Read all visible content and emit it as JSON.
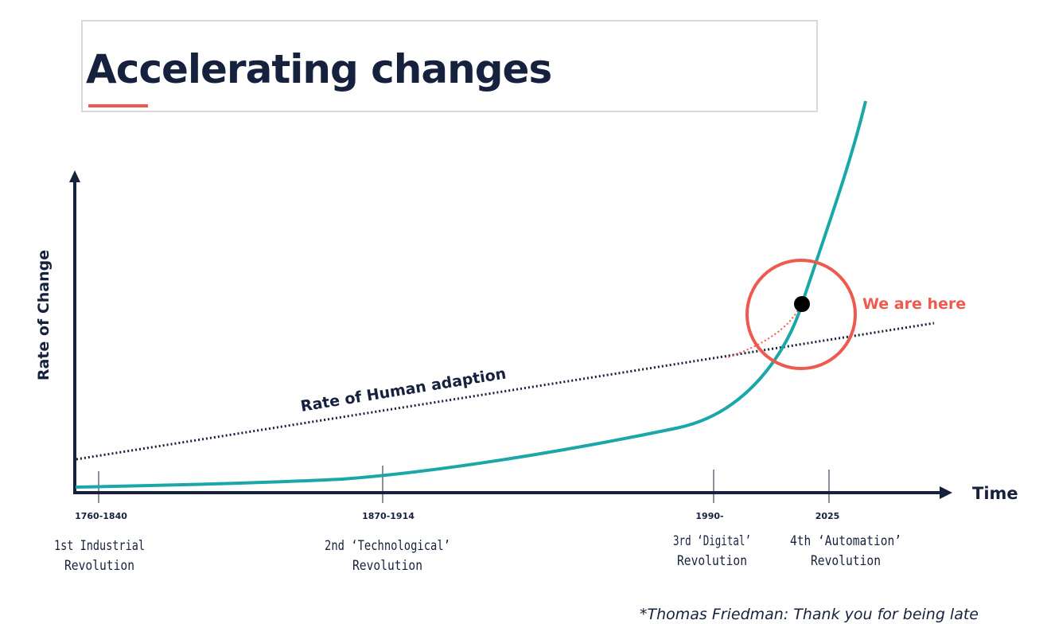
{
  "title": "Accelerating changes",
  "footnote": "*Thomas Friedman: Thank you for being late",
  "colors": {
    "navy": "#16213e",
    "teal": "#1ba7a8",
    "coral": "#ee5a4f",
    "title_border": "#d9d9d9",
    "black": "#000000"
  },
  "diagram": {
    "y_axis_label": "Rate of Change",
    "x_axis_label": "Time",
    "adaption_label": "Rate of Human adaption",
    "marker_label": "We are here",
    "eras": [
      {
        "period": "1760-1840",
        "line1": "1st Industrial",
        "line2": "Revolution"
      },
      {
        "period": "1870-1914",
        "line1": "2nd ‘Technological’",
        "line2": "Revolution"
      },
      {
        "period": "1990-",
        "line1": "3rd ‘Digital’",
        "line2": "Revolution"
      },
      {
        "period": "2025",
        "line1": "4th ‘Automation’",
        "line2": "Revolution"
      }
    ]
  }
}
